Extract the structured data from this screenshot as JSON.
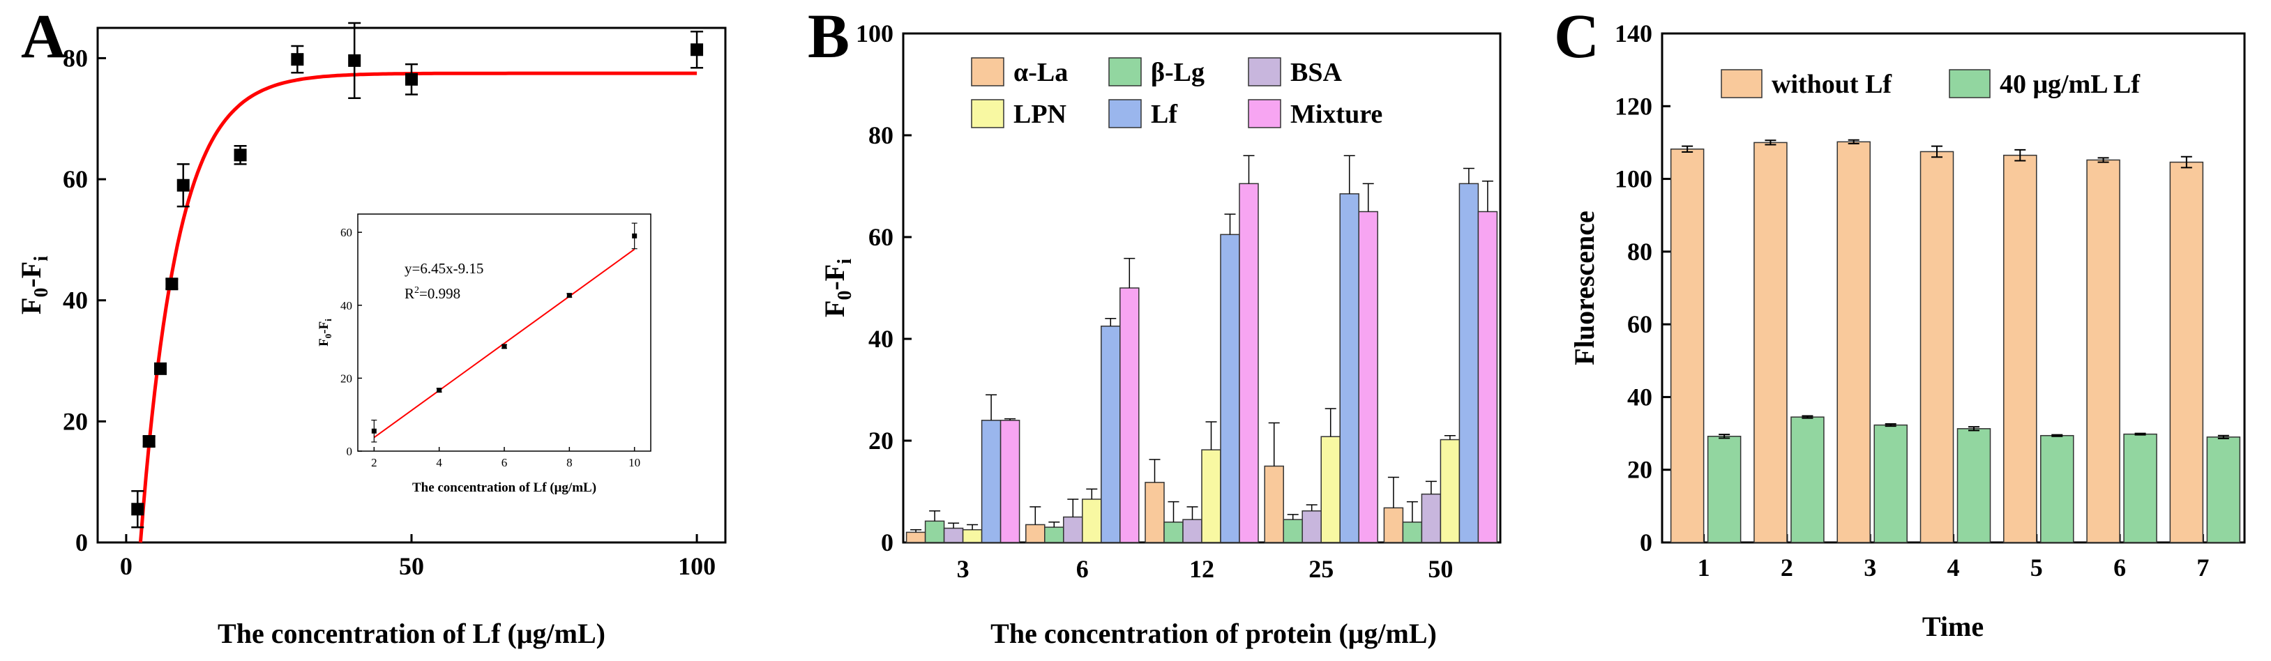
{
  "chart_data": [
    {
      "panel": "A",
      "type": "scatter",
      "xlabel": "The concentration of Lf (μg/mL)",
      "ylabel_main": "F",
      "ylabel_sub1": "0",
      "ylabel_mid": "-F",
      "ylabel_sub2": "i",
      "xlim": [
        -5,
        105
      ],
      "ylim": [
        0,
        85
      ],
      "xticks": [
        0,
        50,
        100
      ],
      "yticks": [
        0,
        20,
        40,
        60,
        80
      ],
      "x": [
        2,
        4,
        6,
        8,
        10,
        20,
        30,
        40,
        50,
        100
      ],
      "y": [
        5.5,
        16.7,
        28.7,
        42.7,
        59,
        64,
        79.8,
        79.6,
        76.5,
        81.4
      ],
      "err": [
        3.0,
        0.8,
        0.8,
        0.8,
        3.5,
        1.5,
        2.2,
        6.2,
        2.5,
        3.0
      ],
      "fit": {
        "color": "#ff0000",
        "plateau": 77.5,
        "x0": 2.5,
        "k": 0.155
      },
      "inset": {
        "xlabel": "The concentration of Lf (μg/mL)",
        "ylabel_main": "F",
        "ylabel_sub1": "0",
        "ylabel_mid": "-F",
        "ylabel_sub2": "i",
        "equation": "y=6.45x-9.15",
        "r2_main": "R",
        "r2_sup": "2",
        "r2_val": "=0.998",
        "xlim": [
          1.5,
          10.5
        ],
        "ylim": [
          0,
          65
        ],
        "xticks": [
          2,
          4,
          6,
          8,
          10
        ],
        "yticks": [
          0,
          20,
          40,
          60
        ],
        "x": [
          2,
          4,
          6,
          8,
          10
        ],
        "y": [
          5.5,
          16.7,
          28.7,
          42.7,
          59
        ],
        "err": [
          3.0,
          0.5,
          0.5,
          0.5,
          3.5
        ],
        "line": {
          "slope": 6.45,
          "intercept": -9.15,
          "color": "#ff0000"
        }
      }
    },
    {
      "panel": "B",
      "type": "bar",
      "xlabel": "The concentration of protein (μg/mL)",
      "ylabel_main": "F",
      "ylabel_sub1": "0",
      "ylabel_mid": "-F",
      "ylabel_sub2": "i",
      "ylim": [
        0,
        100
      ],
      "yticks": [
        0,
        20,
        40,
        60,
        80,
        100
      ],
      "categories": [
        "3",
        "6",
        "12",
        "25",
        "50"
      ],
      "series": [
        {
          "name": "α-La",
          "color": "#f9c99b",
          "values": [
            2,
            3.5,
            11.8,
            15,
            6.8
          ],
          "err": [
            0.5,
            3.5,
            4.5,
            8.5,
            6
          ]
        },
        {
          "name": "β-Lg",
          "color": "#92d6a0",
          "values": [
            4.2,
            3,
            4,
            4.5,
            4
          ],
          "err": [
            2,
            1,
            4,
            1,
            4
          ]
        },
        {
          "name": "BSA",
          "color": "#c8b6dd",
          "values": [
            2.8,
            5,
            4.5,
            6.2,
            9.5
          ],
          "err": [
            1,
            3.5,
            2.5,
            1.2,
            2.5
          ]
        },
        {
          "name": "LPN",
          "color": "#f8f8a2",
          "values": [
            2.5,
            8.5,
            18.2,
            20.8,
            20.2
          ],
          "err": [
            1,
            2,
            5.5,
            5.5,
            0.8
          ]
        },
        {
          "name": "Lf",
          "color": "#9ab6ed",
          "values": [
            24,
            42.5,
            60.5,
            68.5,
            70.5
          ],
          "err": [
            5,
            1.5,
            4,
            7.5,
            3
          ]
        },
        {
          "name": "Mixture",
          "color": "#f7a5f2",
          "values": [
            24,
            50,
            70.5,
            65,
            65
          ],
          "err": [
            0.3,
            5.8,
            5.5,
            5.5,
            6
          ]
        }
      ]
    },
    {
      "panel": "C",
      "type": "bar",
      "xlabel": "Time",
      "ylabel": "Fluorescence",
      "ylim": [
        0,
        140
      ],
      "yticks": [
        0,
        20,
        40,
        60,
        80,
        100,
        120,
        140
      ],
      "categories": [
        "1",
        "2",
        "3",
        "4",
        "5",
        "6",
        "7"
      ],
      "series": [
        {
          "name": "without Lf",
          "color": "#f9c99b",
          "values": [
            108.2,
            110,
            110.2,
            107.5,
            106.5,
            105.2,
            104.6
          ],
          "err": [
            0.8,
            0.6,
            0.5,
            1.5,
            1.5,
            0.6,
            1.5
          ]
        },
        {
          "name": "40 μg/mL Lf",
          "color": "#92d6a0",
          "values": [
            29.2,
            34.5,
            32.3,
            31.3,
            29.4,
            29.8,
            29.0
          ],
          "err": [
            0.5,
            0.3,
            0.3,
            0.5,
            0.2,
            0.2,
            0.4
          ]
        }
      ]
    }
  ]
}
